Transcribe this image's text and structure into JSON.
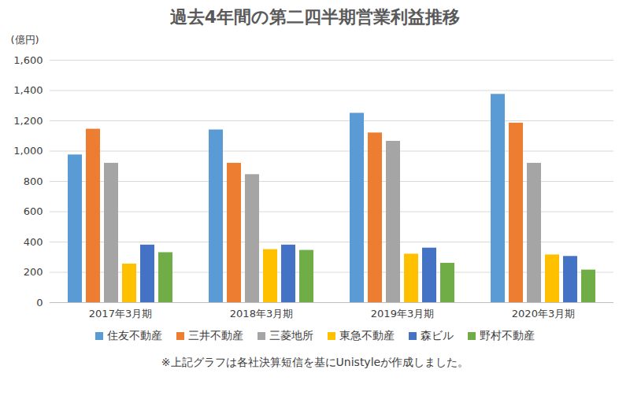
{
  "chart_data": {
    "type": "bar",
    "title": "過去4年間の第二四半期営業利益推移",
    "y_label": "(億円)",
    "caption": "※上記グラフは各社決算短信を基にUnistyleが作成しました。",
    "categories": [
      "2017年3月期",
      "2018年3月期",
      "2019年3月期",
      "2020年3月期"
    ],
    "series": [
      {
        "name": "住友不動産",
        "color": "#5B9BD5",
        "values": [
          975,
          1140,
          1250,
          1375
        ]
      },
      {
        "name": "三井不動産",
        "color": "#ED7D31",
        "values": [
          1145,
          920,
          1120,
          1185
        ]
      },
      {
        "name": "三菱地所",
        "color": "#A5A5A5",
        "values": [
          920,
          845,
          1065,
          920
        ]
      },
      {
        "name": "東急不動産",
        "color": "#FFC000",
        "values": [
          255,
          350,
          320,
          315
        ]
      },
      {
        "name": "森ビル",
        "color": "#4472C4",
        "values": [
          380,
          380,
          360,
          305
        ]
      },
      {
        "name": "野村不動産",
        "color": "#70AD47",
        "values": [
          330,
          345,
          260,
          215
        ]
      }
    ],
    "ylim": [
      0,
      1600
    ],
    "yticks": [
      0,
      200,
      400,
      600,
      800,
      {
        "value": 1000,
        "label": "1,000"
      },
      {
        "value": 1200,
        "label": "1,200"
      },
      {
        "value": 1400,
        "label": "1,400"
      },
      {
        "value": 1600,
        "label": "1,600"
      }
    ],
    "grid": true,
    "legend": "bottom",
    "data_labels": false
  }
}
